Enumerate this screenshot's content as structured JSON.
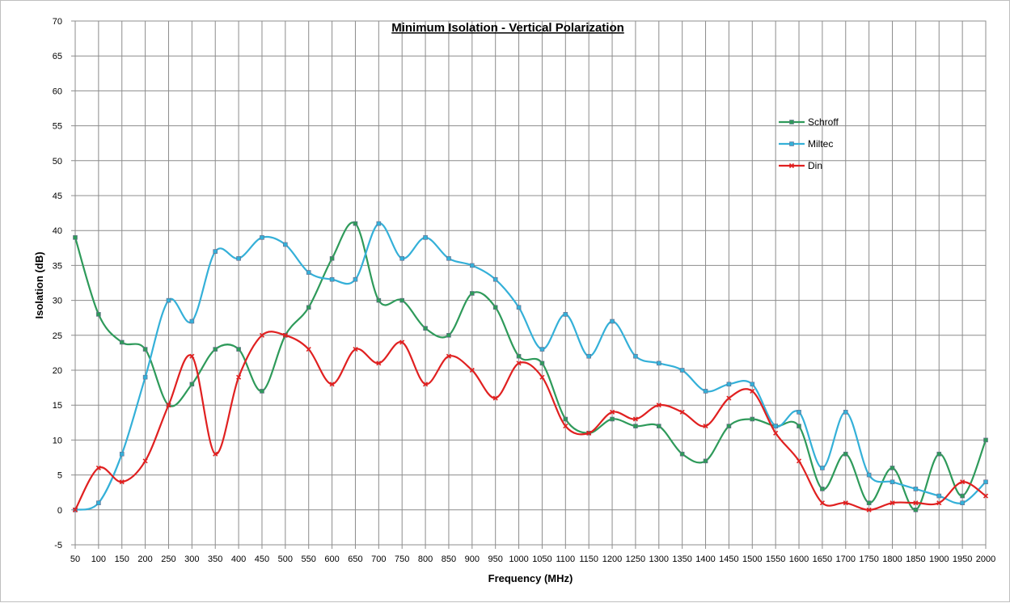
{
  "chart_data": {
    "type": "line",
    "title": "Minimum Isolation - Vertical Polarization",
    "xlabel": "Frequency (MHz)",
    "ylabel": "Isolation (dB)",
    "ylim": [
      -5,
      70
    ],
    "yticks": [
      -5,
      0,
      5,
      10,
      15,
      20,
      25,
      30,
      35,
      40,
      45,
      50,
      55,
      60,
      65,
      70
    ],
    "grid": true,
    "legend_position": "right",
    "x": [
      "50",
      "100",
      "150",
      "200",
      "250",
      "300",
      "350",
      "400",
      "450",
      "500",
      "550",
      "600",
      "650",
      "700",
      "750",
      "800",
      "850",
      "900",
      "950",
      "1000",
      "1050",
      "1100",
      "1150",
      "1200",
      "1250",
      "1300",
      "1350",
      "1400",
      "1450",
      "1500",
      "1550",
      "1600",
      "1650",
      "1700",
      "1750",
      "1800",
      "1850",
      "1900",
      "1950",
      "2000"
    ],
    "series": [
      {
        "name": "Schroff",
        "color": "#2e9a5a",
        "marker": "square",
        "values": [
          39,
          28,
          24,
          23,
          15,
          18,
          23,
          23,
          17,
          25,
          29,
          36,
          41,
          30,
          30,
          26,
          25,
          31,
          29,
          22,
          21,
          13,
          11,
          13,
          12,
          12,
          8,
          7,
          12,
          13,
          12,
          12,
          3,
          8,
          1,
          6,
          0,
          8,
          2,
          10
        ]
      },
      {
        "name": "Miltec",
        "color": "#34b0d8",
        "marker": "square",
        "values": [
          0,
          1,
          8,
          19,
          30,
          27,
          37,
          36,
          39,
          38,
          34,
          33,
          33,
          41,
          36,
          39,
          36,
          35,
          33,
          29,
          23,
          28,
          22,
          27,
          22,
          21,
          20,
          17,
          18,
          18,
          12,
          14,
          6,
          14,
          5,
          4,
          3,
          2,
          1,
          4
        ]
      },
      {
        "name": "Din",
        "color": "#e02020",
        "marker": "x",
        "values": [
          0,
          6,
          4,
          7,
          15,
          22,
          8,
          19,
          25,
          25,
          23,
          18,
          23,
          21,
          24,
          18,
          22,
          20,
          16,
          21,
          19,
          12,
          11,
          14,
          13,
          15,
          14,
          12,
          16,
          17,
          11,
          7,
          1,
          1,
          0,
          1,
          1,
          1,
          4,
          2
        ]
      }
    ]
  }
}
